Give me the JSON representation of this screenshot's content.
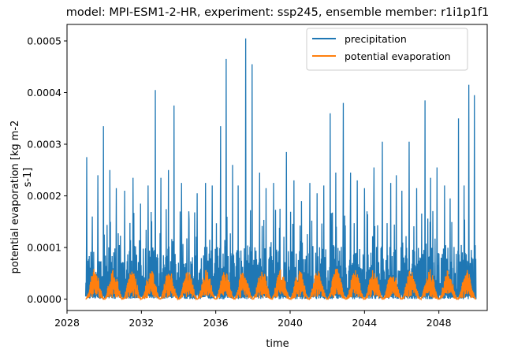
{
  "chart_data": {
    "type": "line",
    "title": "model: MPI-ESM1-2-HR, experiment: ssp245, ensemble member: r1i1p1f1",
    "xlabel": "time",
    "ylabel_line1": "potential evaporation [kg m-2",
    "ylabel_line2": "s-1]",
    "xlim": [
      2028.0,
      2050.6
    ],
    "ylim": [
      -2.2e-05,
      0.000532
    ],
    "x_ticks": [
      2028,
      2032,
      2036,
      2040,
      2044,
      2048
    ],
    "y_ticks": [
      0.0,
      0.0001,
      0.0002,
      0.0003,
      0.0004,
      0.0005
    ],
    "y_tick_labels": [
      "0.0000",
      "0.0001",
      "0.0002",
      "0.0003",
      "0.0004",
      "0.0005"
    ],
    "legend_position": "top-right",
    "series": [
      {
        "name": "precipitation",
        "color": "#1f77b4",
        "x_start": 2029.0,
        "x_end": 2050.0,
        "baseline_upper": 0.000105,
        "min_value": 0.0,
        "peaks": [
          [
            2029.05,
            0.000275
          ],
          [
            2029.35,
            0.00016
          ],
          [
            2029.65,
            0.00024
          ],
          [
            2029.95,
            0.000335
          ],
          [
            2030.3,
            0.00025
          ],
          [
            2030.65,
            0.000215
          ],
          [
            2031.1,
            0.00021
          ],
          [
            2031.55,
            0.000235
          ],
          [
            2031.95,
            0.000185
          ],
          [
            2032.35,
            0.00022
          ],
          [
            2032.75,
            0.000405
          ],
          [
            2033.05,
            0.000235
          ],
          [
            2033.45,
            0.00025
          ],
          [
            2033.75,
            0.000375
          ],
          [
            2034.15,
            0.000225
          ],
          [
            2034.55,
            0.00017
          ],
          [
            2035.0,
            0.000205
          ],
          [
            2035.45,
            0.000225
          ],
          [
            2035.8,
            0.00022
          ],
          [
            2036.25,
            0.000335
          ],
          [
            2036.55,
            0.000465
          ],
          [
            2036.9,
            0.00026
          ],
          [
            2037.2,
            0.00022
          ],
          [
            2037.6,
            0.000505
          ],
          [
            2037.95,
            0.000455
          ],
          [
            2038.35,
            0.000245
          ],
          [
            2038.7,
            0.000215
          ],
          [
            2039.1,
            0.000225
          ],
          [
            2039.45,
            0.000175
          ],
          [
            2039.8,
            0.000285
          ],
          [
            2040.2,
            0.00023
          ],
          [
            2040.6,
            0.00019
          ],
          [
            2041.05,
            0.000225
          ],
          [
            2041.45,
            0.000205
          ],
          [
            2041.8,
            0.00022
          ],
          [
            2042.15,
            0.00036
          ],
          [
            2042.45,
            0.000245
          ],
          [
            2042.85,
            0.00038
          ],
          [
            2043.25,
            0.000245
          ],
          [
            2043.6,
            0.00023
          ],
          [
            2044.0,
            0.000215
          ],
          [
            2044.5,
            0.000255
          ],
          [
            2044.95,
            0.000305
          ],
          [
            2045.4,
            0.000225
          ],
          [
            2045.7,
            0.00024
          ],
          [
            2046.0,
            0.00021
          ],
          [
            2046.4,
            0.000305
          ],
          [
            2046.8,
            0.000215
          ],
          [
            2047.25,
            0.000385
          ],
          [
            2047.55,
            0.000235
          ],
          [
            2047.9,
            0.000255
          ],
          [
            2048.3,
            0.00022
          ],
          [
            2048.6,
            0.000195
          ],
          [
            2049.05,
            0.00035
          ],
          [
            2049.35,
            0.00022
          ],
          [
            2049.6,
            0.000415
          ],
          [
            2049.9,
            0.000395
          ]
        ]
      },
      {
        "name": "potential evaporation",
        "color": "#ff7f0e",
        "x_start": 2029.0,
        "x_end": 2050.0,
        "min_value": 0.0,
        "seasonal_peak_values": [
          6e-05,
          5.8e-05,
          5.8e-05,
          5.8e-05,
          6e-05,
          5.8e-05,
          5.7e-05,
          5.9e-05,
          6e-05,
          6e-05,
          5.9e-05,
          5.8e-05,
          5.9e-05,
          6e-05,
          5.8e-05,
          5.9e-05,
          5.8e-05,
          5.8e-05,
          5.9e-05,
          5.8e-05,
          5.7e-05
        ]
      }
    ]
  }
}
